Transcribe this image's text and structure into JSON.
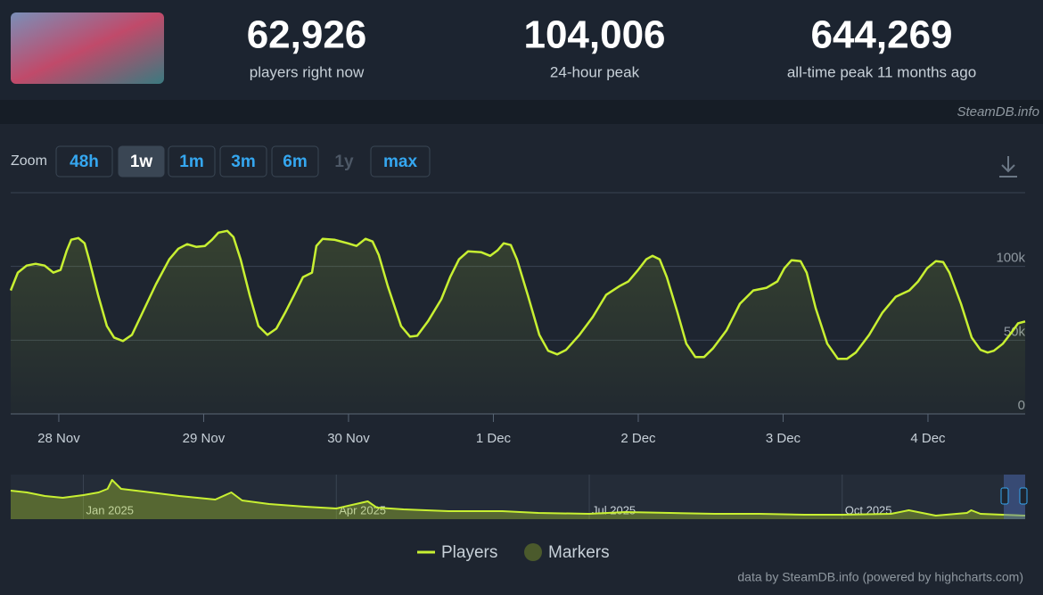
{
  "header": {
    "stats": [
      {
        "value": "62,926",
        "label": "players right now"
      },
      {
        "value": "104,006",
        "label": "24-hour peak"
      },
      {
        "value": "644,269",
        "label": "all-time peak 11 months ago"
      }
    ],
    "watermark": "SteamDB.info"
  },
  "zoom": {
    "label": "Zoom",
    "buttons": [
      "48h",
      "1w",
      "1m",
      "3m",
      "6m",
      "1y",
      "max"
    ],
    "active": 1,
    "disabled": [
      5
    ]
  },
  "chart_data": [
    {
      "type": "line",
      "x": [
        -0.332,
        -0.283,
        -0.222,
        -0.16,
        -0.098,
        -0.037,
        0.012,
        0.055,
        0.086,
        0.135,
        0.178,
        0.209,
        0.271,
        0.332,
        0.382,
        0.443,
        0.505,
        0.578,
        0.671,
        0.763,
        0.825,
        0.886,
        0.948,
        1.009,
        1.058,
        1.102,
        1.163,
        1.206,
        1.255,
        1.317,
        1.378,
        1.44,
        1.502,
        1.563,
        1.625,
        1.686,
        1.748,
        1.778,
        1.822,
        1.902,
        1.994,
        2.055,
        2.117,
        2.166,
        2.209,
        2.271,
        2.363,
        2.425,
        2.474,
        2.548,
        2.64,
        2.702,
        2.763,
        2.825,
        2.917,
        2.978,
        3.028,
        3.071,
        3.12,
        3.163,
        3.237,
        3.317,
        3.378,
        3.44,
        3.502,
        3.594,
        3.686,
        3.778,
        3.871,
        3.932,
        3.994,
        4.055,
        4.098,
        4.148,
        4.197,
        4.271,
        4.332,
        4.394,
        4.455,
        4.517,
        4.609,
        4.702,
        4.794,
        4.886,
        4.96,
        5.009,
        5.058,
        5.12,
        5.163,
        5.225,
        5.305,
        5.378,
        5.44,
        5.502,
        5.594,
        5.686,
        5.778,
        5.871,
        5.932,
        5.994,
        6.055,
        6.105,
        6.148,
        6.228,
        6.302,
        6.363,
        6.412,
        6.455,
        6.517,
        6.578,
        6.622,
        6.671
      ],
      "series": [
        {
          "name": "Players",
          "color": "#c8f032",
          "values": [
            83700,
            95800,
            100600,
            101800,
            100600,
            95800,
            97600,
            110800,
            118100,
            119300,
            115700,
            104800,
            80700,
            59600,
            51800,
            49400,
            53600,
            68700,
            88000,
            104800,
            112000,
            115100,
            113300,
            113900,
            118100,
            122900,
            124100,
            119900,
            104800,
            80700,
            59600,
            53600,
            57800,
            68700,
            80700,
            92800,
            95800,
            113900,
            118700,
            118100,
            115700,
            113900,
            118700,
            116900,
            107800,
            86700,
            59600,
            52400,
            53000,
            62700,
            77700,
            92800,
            104800,
            110200,
            109600,
            107200,
            110800,
            115700,
            114500,
            104800,
            80700,
            53600,
            42800,
            40400,
            43400,
            53600,
            65700,
            80700,
            86700,
            89800,
            97000,
            104800,
            107200,
            104800,
            92800,
            68700,
            47600,
            38600,
            38600,
            44600,
            56600,
            74700,
            83700,
            85500,
            89800,
            98800,
            104200,
            103600,
            95800,
            71700,
            47600,
            37300,
            37300,
            41600,
            53600,
            68700,
            79500,
            83700,
            89800,
            98800,
            103600,
            103000,
            95800,
            74700,
            51800,
            43400,
            41600,
            42800,
            47600,
            55400,
            61400,
            62700
          ]
        }
      ],
      "markers": {
        "name": "Markers",
        "color": "#4b5a2c"
      },
      "xlim": [
        -0.332,
        6.671
      ],
      "ylim": [
        0,
        150000
      ],
      "xticks": [
        {
          "value": 0,
          "label": "28 Nov"
        },
        {
          "value": 1,
          "label": "29 Nov"
        },
        {
          "value": 2,
          "label": "30 Nov"
        },
        {
          "value": 3,
          "label": "1 Dec"
        },
        {
          "value": 4,
          "label": "2 Dec"
        },
        {
          "value": 5,
          "label": "3 Dec"
        },
        {
          "value": 6,
          "label": "4 Dec"
        }
      ],
      "yticks": [
        0,
        {
          "value": 50000,
          "label": "50k"
        },
        {
          "value": 100000,
          "label": "100k"
        }
      ],
      "grid": true,
      "legend": "bottom",
      "credit": "data by SteamDB.info (powered by highcharts.com)"
    },
    {
      "type": "line",
      "x": [
        -0.862,
        -0.67,
        -0.457,
        -0.245,
        0,
        0.181,
        0.287,
        0.34,
        0.447,
        0.713,
        1.138,
        1.564,
        1.755,
        1.883,
        2.202,
        2.628,
        3,
        3.372,
        3.479,
        3.798,
        4.33,
        4.968,
        5.394,
        6,
        6.43,
        6.96,
        7.49,
        8.02,
        8.55,
        9,
        9.58,
        9.79,
        10.11,
        10.48,
        10.53,
        10.64,
        10.9,
        11.17
      ],
      "values": [
        448000,
        420000,
        364000,
        336000,
        378000,
        420000,
        476000,
        616000,
        476000,
        434000,
        364000,
        308000,
        420000,
        294000,
        238000,
        196000,
        168000,
        280000,
        182000,
        154000,
        126000,
        126000,
        98000,
        84000,
        112000,
        98000,
        84000,
        84000,
        70000,
        70000,
        84000,
        140000,
        56000,
        98000,
        140000,
        84000,
        70000,
        56000
      ],
      "color": "#c8f032",
      "xlim": [
        -0.862,
        11.17
      ],
      "ylim": [
        0,
        700000
      ],
      "xticks": [
        {
          "value": 0,
          "label": "Jan 2025"
        },
        {
          "value": 3,
          "label": "Apr 2025"
        },
        {
          "value": 6,
          "label": "Jul 2025"
        },
        {
          "value": 9,
          "label": "Oct 2025"
        }
      ]
    }
  ]
}
